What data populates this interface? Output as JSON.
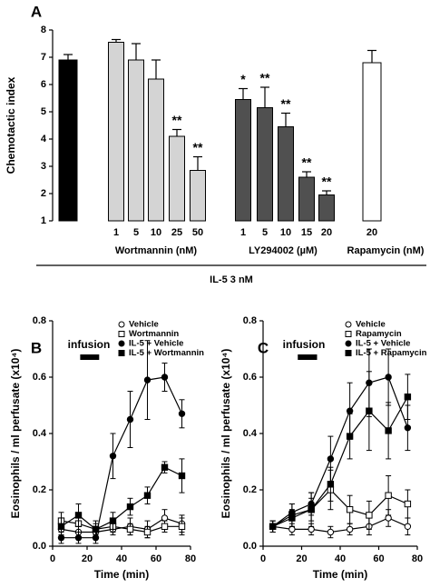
{
  "chart_data": [
    {
      "type": "bar",
      "panel": "A",
      "ylabel": "Chemotactic index",
      "ylim": [
        1,
        8
      ],
      "yticks": [
        1,
        2,
        3,
        4,
        5,
        6,
        7,
        8
      ],
      "groups": [
        {
          "label": null,
          "color": "#000000",
          "categories": [
            null
          ],
          "values": [
            6.9
          ],
          "errors": [
            0.2
          ],
          "significance": [
            null
          ]
        },
        {
          "label": "Wortmannin (nM)",
          "color": "#d4d4d4",
          "categories": [
            "1",
            "5",
            "10",
            "25",
            "50"
          ],
          "values": [
            7.55,
            6.9,
            6.2,
            4.1,
            2.85
          ],
          "errors": [
            0.1,
            0.6,
            0.7,
            0.25,
            0.5
          ],
          "significance": [
            null,
            null,
            null,
            "**",
            "**"
          ]
        },
        {
          "label": "LY294002 (µM)",
          "color": "#505050",
          "categories": [
            "1",
            "5",
            "10",
            "15",
            "20"
          ],
          "values": [
            5.45,
            5.15,
            4.45,
            2.6,
            1.95
          ],
          "errors": [
            0.4,
            0.75,
            0.5,
            0.2,
            0.15
          ],
          "significance": [
            "*",
            "**",
            "**",
            "**",
            "**"
          ]
        },
        {
          "label": "Rapamycin (nM)",
          "color": "#ffffff",
          "categories": [
            "20"
          ],
          "values": [
            6.8
          ],
          "errors": [
            0.45
          ],
          "significance": [
            null
          ]
        }
      ],
      "footer": "IL-5 3 nM"
    },
    {
      "type": "line",
      "panel": "B",
      "ylabel": "Eosinophils / ml perfusate (x10⁴)",
      "xlabel": "Time (min)",
      "xlim": [
        0,
        80
      ],
      "xticks": [
        0,
        20,
        40,
        60,
        80
      ],
      "ylim": [
        0,
        0.8
      ],
      "yticks": [
        {
          "value": 0,
          "label": "0.0"
        },
        0.2,
        0.4,
        0.6,
        0.8
      ],
      "legend": "upper right",
      "infusion": {
        "label": "infusion",
        "start": 16,
        "end": 27
      },
      "x": [
        5,
        15,
        25,
        35,
        45,
        55,
        65,
        75
      ],
      "series": [
        {
          "name": "Vehicle",
          "color": "#000000",
          "marker": "circle",
          "filled": false,
          "values": [
            0.06,
            0.05,
            0.05,
            0.06,
            0.07,
            0.06,
            0.1,
            0.08
          ],
          "errors": [
            0.02,
            0.02,
            0.02,
            0.02,
            0.03,
            0.03,
            0.03,
            0.03
          ]
        },
        {
          "name": "Wortmannin",
          "color": "#000000",
          "marker": "square",
          "filled": false,
          "values": [
            0.09,
            0.08,
            0.06,
            0.07,
            0.06,
            0.05,
            0.07,
            0.07
          ],
          "errors": [
            0.03,
            0.03,
            0.02,
            0.02,
            0.02,
            0.02,
            0.02,
            0.03
          ]
        },
        {
          "name": "IL-5 + Vehicle",
          "color": "#000000",
          "marker": "circle",
          "filled": true,
          "values": [
            0.03,
            0.03,
            0.03,
            0.32,
            0.45,
            0.59,
            0.6,
            0.47
          ],
          "errors": [
            0.02,
            0.02,
            0.02,
            0.08,
            0.1,
            0.14,
            0.05,
            0.05
          ]
        },
        {
          "name": "IL-5 + Wortmannin",
          "color": "#000000",
          "marker": "square",
          "filled": true,
          "values": [
            0.07,
            0.11,
            0.06,
            0.09,
            0.14,
            0.18,
            0.28,
            0.25
          ],
          "errors": [
            0.03,
            0.04,
            0.03,
            0.03,
            0.03,
            0.03,
            0.02,
            0.06
          ]
        }
      ]
    },
    {
      "type": "line",
      "panel": "C",
      "ylabel": "Eosinophils / ml perfusate (x10⁴)",
      "xlabel": "Time (min)",
      "xlim": [
        0,
        80
      ],
      "xticks": [
        0,
        20,
        40,
        60,
        80
      ],
      "ylim": [
        0,
        0.8
      ],
      "yticks": [
        {
          "value": 0,
          "label": "0.0"
        },
        0.2,
        0.4,
        0.6,
        0.8
      ],
      "legend": "upper right",
      "infusion": {
        "label": "infusion",
        "start": 18,
        "end": 28
      },
      "x": [
        5,
        15,
        25,
        35,
        45,
        55,
        65,
        75
      ],
      "series": [
        {
          "name": "Vehicle",
          "color": "#000000",
          "marker": "circle",
          "filled": false,
          "values": [
            0.07,
            0.06,
            0.06,
            0.05,
            0.06,
            0.07,
            0.1,
            0.07
          ],
          "errors": [
            0.02,
            0.02,
            0.02,
            0.02,
            0.02,
            0.03,
            0.03,
            0.03
          ]
        },
        {
          "name": "Rapamycin",
          "color": "#000000",
          "marker": "square",
          "filled": false,
          "values": [
            0.07,
            0.11,
            0.13,
            0.2,
            0.13,
            0.11,
            0.18,
            0.15
          ],
          "errors": [
            0.02,
            0.04,
            0.06,
            0.07,
            0.05,
            0.05,
            0.07,
            0.05
          ]
        },
        {
          "name": "IL-5 + Vehicle",
          "color": "#000000",
          "marker": "circle",
          "filled": true,
          "values": [
            0.07,
            0.12,
            0.15,
            0.31,
            0.48,
            0.58,
            0.6,
            0.42
          ],
          "errors": [
            0.02,
            0.03,
            0.04,
            0.08,
            0.1,
            0.12,
            0.1,
            0.08
          ]
        },
        {
          "name": "IL-5 + Rapamycin",
          "color": "#000000",
          "marker": "square",
          "filled": true,
          "values": [
            0.07,
            0.1,
            0.13,
            0.22,
            0.39,
            0.48,
            0.41,
            0.53
          ],
          "errors": [
            0.02,
            0.03,
            0.04,
            0.06,
            0.08,
            0.14,
            0.1,
            0.08
          ]
        }
      ]
    }
  ]
}
